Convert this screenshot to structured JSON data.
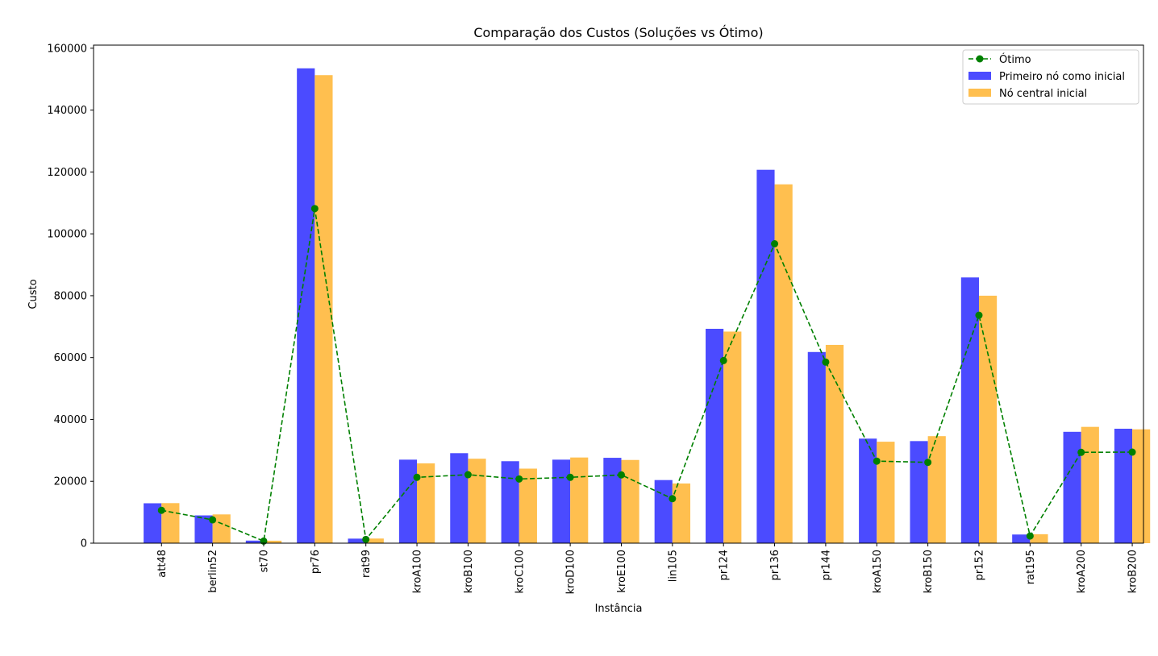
{
  "chart_data": {
    "type": "bar",
    "title": "Comparação dos Custos (Soluções vs Ótimo)",
    "xlabel": "Instância",
    "ylabel": "Custo",
    "ylim": [
      0,
      161000
    ],
    "yticks": [
      0,
      20000,
      40000,
      60000,
      80000,
      100000,
      120000,
      140000,
      160000
    ],
    "categories": [
      "att48",
      "berlin52",
      "st70",
      "pr76",
      "rat99",
      "kroA100",
      "kroB100",
      "kroC100",
      "kroD100",
      "kroE100",
      "lin105",
      "pr124",
      "pr136",
      "pr144",
      "kroA150",
      "kroB150",
      "pr152",
      "rat195",
      "kroA200",
      "kroB200"
    ],
    "series": [
      {
        "name": "Primeiro nó como inicial",
        "kind": "bar",
        "color": "#4b4bff",
        "values": [
          12900,
          8980,
          830,
          153500,
          1470,
          27000,
          29100,
          26500,
          27000,
          27600,
          20400,
          69300,
          120700,
          61800,
          33800,
          33000,
          85900,
          2800,
          36000,
          37000
        ]
      },
      {
        "name": "Nó central inicial",
        "kind": "bar",
        "color": "#ffbf4f",
        "values": [
          12950,
          9300,
          800,
          151300,
          1500,
          25800,
          27300,
          24100,
          27700,
          26900,
          19300,
          68400,
          116000,
          64100,
          32800,
          34600,
          80000,
          2900,
          37600,
          36800
        ]
      },
      {
        "name": "Ótimo",
        "kind": "line",
        "color": "#008000",
        "values": [
          10628,
          7542,
          675,
          108159,
          1211,
          21282,
          22141,
          20749,
          21294,
          22068,
          14379,
          59030,
          96772,
          58537,
          26524,
          26130,
          73682,
          2323,
          29368,
          29437
        ]
      }
    ],
    "legend": {
      "placement": "top-right",
      "order": [
        "Ótimo",
        "Primeiro nó como inicial",
        "Nó central inicial"
      ]
    },
    "grid": false
  }
}
